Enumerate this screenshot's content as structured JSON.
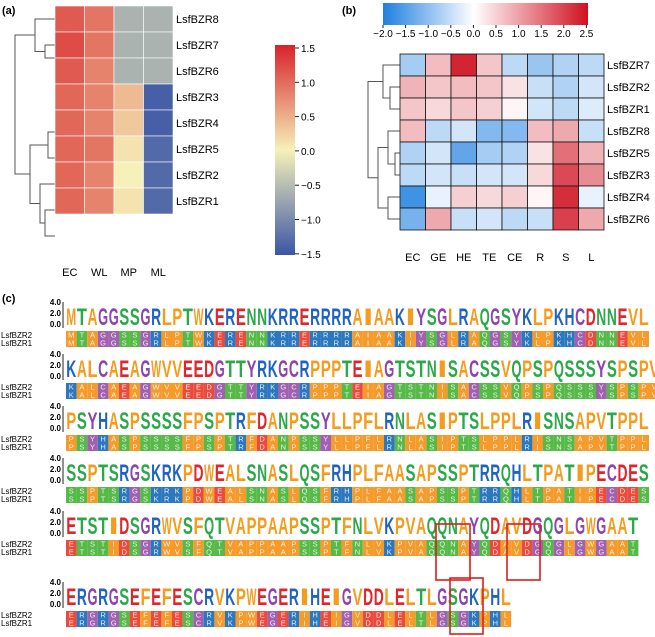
{
  "panels": {
    "a": "(a)",
    "b": "(b)",
    "c": "(c)"
  },
  "heatmap_a": {
    "rows": [
      "LsfBZR8",
      "LsfBZR7",
      "LsfBZR6",
      "LsfBZR3",
      "LsfBZR4",
      "LsfBZR5",
      "LsfBZR2",
      "LsfBZR1"
    ],
    "cols": [
      "EC",
      "WL",
      "MP",
      "ML"
    ],
    "values": [
      [
        1.1,
        0.9,
        -0.6,
        -0.6
      ],
      [
        1.2,
        0.9,
        -0.6,
        -0.6
      ],
      [
        1.1,
        0.8,
        -0.6,
        -0.6
      ],
      [
        1.0,
        0.8,
        0.4,
        -1.4
      ],
      [
        1.0,
        0.8,
        0.3,
        -1.4
      ],
      [
        1.0,
        0.9,
        0.1,
        -1.3
      ],
      [
        1.0,
        0.8,
        0.0,
        -1.3
      ],
      [
        1.0,
        0.8,
        0.1,
        -1.3
      ]
    ],
    "colorbar_ticks": [
      "1.5",
      "1.0",
      "0.5",
      "0.0",
      "−0.5",
      "−1.0",
      "−1.5"
    ]
  },
  "heatmap_b": {
    "rows": [
      "LsfBZR7",
      "LsfBZR2",
      "LsfBZR1",
      "LsfBZR8",
      "LsfBZR5",
      "LsfBZR3",
      "LsfBZR4",
      "LsfBZR6"
    ],
    "cols": [
      "EC",
      "GE",
      "HE",
      "TE",
      "CE",
      "R",
      "S",
      "L"
    ],
    "values": [
      [
        -0.8,
        0.7,
        2.3,
        0.6,
        -0.6,
        -0.9,
        -0.7,
        -0.6
      ],
      [
        0.8,
        0.6,
        0.7,
        0.6,
        0.3,
        -0.5,
        -0.7,
        -0.4
      ],
      [
        0.6,
        0.4,
        0.6,
        0.5,
        0.1,
        -0.4,
        -0.6,
        -0.3
      ],
      [
        0.7,
        -0.6,
        -0.4,
        -1.1,
        -1.1,
        0.7,
        0.9,
        -0.5
      ],
      [
        -0.7,
        -0.4,
        -1.4,
        -0.8,
        -0.7,
        0.3,
        1.5,
        0.8
      ],
      [
        -0.6,
        -0.4,
        -0.5,
        -0.4,
        -0.4,
        0.4,
        1.9,
        1.2
      ],
      [
        -1.7,
        -0.2,
        0.5,
        0.4,
        0.5,
        0.1,
        2.2,
        -0.2
      ],
      [
        -1.2,
        0.9,
        -0.5,
        -0.4,
        -0.6,
        -0.5,
        2.0,
        0.9
      ]
    ],
    "colorbar_ticks": [
      "−2.0",
      "−1.5",
      "−1.0",
      "−0.5",
      "0.0",
      "0.5",
      "1.0",
      "1.5",
      "2.0",
      "2.5"
    ]
  },
  "alignment": {
    "seq_labels": [
      "LsfBZR2",
      "LsfBZR1"
    ],
    "y_ticks": [
      "4.0",
      "2.0",
      "0.0"
    ],
    "blocks": [
      "MTAGGSSGRLPTWKERENNKRRERRRRAIAAKIYSGLRAQGSYKLPKHCDNNEVL",
      "KALCAEAGWVVEEDGTTYRKGCRPPPTEIAGTSTNISACSSVQPSPQSSSYSPSPV",
      "PSYHASPSSSSFPSPTRFDANPSSYLLPFLRNLASIPTSLPPLRISNSAPVTPPL",
      "SSPTSRGSKRKPDWEALSNASLQSFRHPLFAASAPSSPTRRQHLTPATIPECDES",
      "ETSTIDSGRWVSFQTVAPPAAPSSPTFNLVKPVAQQNAYQDAVDGQGLGWGAAT",
      "ERGRGSEFEFESCRVKPWEGERIHEIGVDDLELTLGSGKPHL"
    ]
  }
}
